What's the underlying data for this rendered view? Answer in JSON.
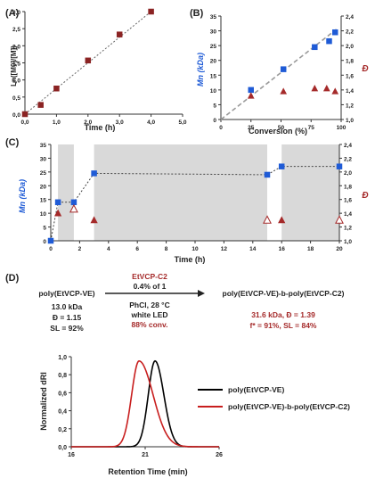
{
  "chart_data": [
    {
      "panel": "(A)",
      "type": "scatter",
      "xlabel": "Time (h)",
      "ylabel": "Ln([M0]/[M])",
      "xlim": [
        0,
        5
      ],
      "ylim": [
        0,
        3
      ],
      "xticks": [
        "0,0",
        "1,0",
        "2,0",
        "3,0",
        "4,0",
        "5,0"
      ],
      "yticks": [
        "0,0",
        "0,5",
        "1,0",
        "1,5",
        "2,0",
        "2,5",
        "3,0"
      ],
      "series": [
        {
          "x": [
            0,
            0.5,
            1,
            2,
            3,
            4
          ],
          "y": [
            0,
            0.27,
            0.75,
            1.57,
            2.33,
            3.0
          ]
        }
      ],
      "trendline": true
    },
    {
      "panel": "(B)",
      "type": "scatter",
      "xlabel": "Conversion (%)",
      "ylabel": "Mn (kDa)",
      "ylabel_right": "Đ",
      "xlim": [
        0,
        100
      ],
      "ylim": [
        0,
        35
      ],
      "ylim_right": [
        1.0,
        2.4
      ],
      "xticks": [
        "0",
        "25",
        "50",
        "75",
        "100"
      ],
      "yticks": [
        "0",
        "5",
        "10",
        "15",
        "20",
        "25",
        "30",
        "35"
      ],
      "yticks_right": [
        "1,0",
        "1,2",
        "1,4",
        "1,6",
        "1,8",
        "2,0",
        "2,2",
        "2,4"
      ],
      "series": [
        {
          "axis": "left",
          "marker": "square",
          "x": [
            25,
            52,
            78,
            90,
            95
          ],
          "y": [
            10,
            17,
            24.5,
            26.5,
            29.5
          ]
        },
        {
          "axis": "right",
          "marker": "triangle",
          "x": [
            25,
            52,
            78,
            88,
            95
          ],
          "y": [
            1.32,
            1.38,
            1.42,
            1.42,
            1.38
          ]
        }
      ],
      "trendline": true
    },
    {
      "panel": "(C)",
      "type": "scatter",
      "xlabel": "Time (h)",
      "ylabel": "Mn (kDa)",
      "ylabel_right": "Đ",
      "xlim": [
        0,
        20
      ],
      "ylim": [
        0,
        35
      ],
      "ylim_right": [
        1.0,
        2.4
      ],
      "xticks": [
        "0",
        "2",
        "4",
        "6",
        "8",
        "10",
        "12",
        "14",
        "16",
        "18",
        "20"
      ],
      "yticks": [
        "0",
        "5",
        "10",
        "15",
        "20",
        "25",
        "30",
        "35"
      ],
      "yticks_right": [
        "1,0",
        "1,2",
        "1,4",
        "1,6",
        "1,8",
        "2,0",
        "2,2",
        "2,4"
      ],
      "shaded_intervals": [
        [
          0.5,
          1.6
        ],
        [
          3,
          15
        ],
        [
          16,
          20
        ]
      ],
      "series": [
        {
          "axis": "left",
          "marker": "square",
          "x": [
            0,
            0.5,
            1.6,
            3,
            15,
            16,
            20
          ],
          "y": [
            0,
            14,
            14,
            24.5,
            24,
            27,
            27
          ]
        },
        {
          "axis": "right",
          "marker": "triangle",
          "x": [
            0.5,
            3,
            16
          ],
          "y": [
            1.4,
            1.3,
            1.3
          ]
        },
        {
          "axis": "right",
          "marker": "triangle-open",
          "x": [
            1.6,
            15,
            20
          ],
          "y": [
            1.46,
            1.3,
            1.3
          ]
        }
      ]
    },
    {
      "panel": "(D)",
      "type": "line",
      "xlabel": "Retention Time (min)",
      "ylabel": "Normalized dRI",
      "xlim": [
        16,
        28
      ],
      "ylim": [
        0,
        1.05
      ],
      "xticks": [
        "16",
        "21",
        "26"
      ],
      "yticks": [
        "0,0",
        "0,2",
        "0,4",
        "0,6",
        "0,8",
        "1,0"
      ],
      "series": [
        {
          "name": "poly(EtVCP-VE)",
          "color": "#000000",
          "peak_x": 22.8,
          "width": 0.55
        },
        {
          "name": "poly(EtVCP-VE)-b-poly(EtVCP-C2)",
          "color": "#c81e1e",
          "peak_x": 21.5,
          "width": 0.6
        }
      ]
    }
  ],
  "scheme": {
    "panel_label": "(D)",
    "reactant": "poly(EtVCP-VE)",
    "reactant_props": [
      "13.0 kDa",
      "Đ = 1.15",
      "SL = 92%"
    ],
    "reagent": "EtVCP-C2",
    "reagent_ratio": "0.4% of 1",
    "conditions": [
      "PhCl, 28 °C",
      "white LED"
    ],
    "conversion": "88% conv.",
    "product": "poly(EtVCP-VE)-b-poly(EtVCP-C2)",
    "product_props": [
      "31.6 kDa, Đ = 1.39",
      "f* = 91%, SL = 84%"
    ]
  },
  "colors": {
    "square": "#1f5bd6",
    "triangle": "#a52a2a",
    "trace1": "#000000",
    "trace2": "#c81e1e",
    "shade": "#d9d9d9"
  }
}
